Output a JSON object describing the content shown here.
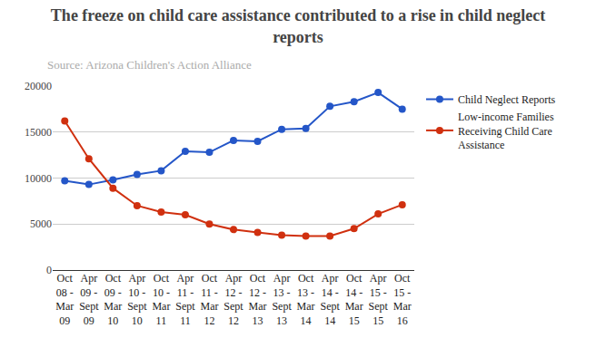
{
  "chart_data": {
    "type": "line",
    "title": "The freeze on child care assistance contributed to a rise in child neglect reports",
    "subtitle": "Source: Arizona Children's Action Alliance",
    "categories": [
      "Oct 08 - Mar 09",
      "Apr 09 - Sept 09",
      "Oct 09 - Mar 10",
      "Apr 10 - Sept 10",
      "Oct 10 - Mar 11",
      "Apr 11 - Sept 11",
      "Oct 11 - Mar 12",
      "Apr 12 - Sept 12",
      "Oct 12 - Mar 13",
      "Apr 13 - Sept 13",
      "Oct 13 - Mar 14",
      "Apr 14 - Sept 14",
      "Oct 14 - Mar 15",
      "Apr 15 - Sept 15",
      "Oct 15 - Mar 16"
    ],
    "series": [
      {
        "name": "Child Neglect Reports",
        "color": "#2456c8",
        "marker": "circle",
        "line_style": "solid",
        "values": [
          9700,
          9300,
          9800,
          10400,
          10800,
          12900,
          12800,
          14100,
          14000,
          15300,
          15400,
          17800,
          18300,
          19300,
          17500
        ]
      },
      {
        "name": "Low-income Families Receiving Child Care Assistance",
        "color": "#d0300f",
        "marker": "circle",
        "line_style": "solid",
        "values": [
          16200,
          12100,
          8900,
          7000,
          6300,
          6000,
          5000,
          4400,
          4100,
          3800,
          3700,
          3700,
          4500,
          6100,
          7100
        ]
      }
    ],
    "ylim": [
      0,
      20000
    ],
    "yticks": [
      0,
      5000,
      10000,
      15000,
      20000
    ],
    "grid": true,
    "legend": "right"
  }
}
